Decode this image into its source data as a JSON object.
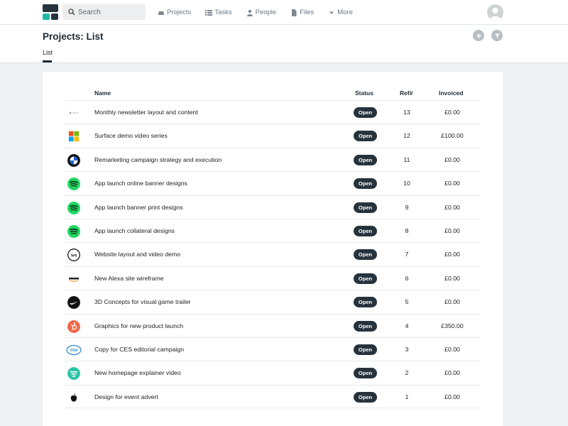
{
  "search": {
    "placeholder": "Search"
  },
  "nav": [
    {
      "label": "Projects",
      "icon": "car-icon"
    },
    {
      "label": "Tasks",
      "icon": "list-icon"
    },
    {
      "label": "People",
      "icon": "person-icon"
    },
    {
      "label": "Files",
      "icon": "file-icon"
    },
    {
      "label": "More",
      "icon": "caret-down-icon"
    }
  ],
  "page": {
    "title": "Projects: List",
    "tab": "List"
  },
  "table": {
    "headers": {
      "name": "Name",
      "status": "Status",
      "ref": "Ref#",
      "invoiced": "Invoiced"
    },
    "rows": [
      {
        "logo": "generic-logo",
        "name": "Monthly newsletter layout and content",
        "status": "Open",
        "ref": "13",
        "invoiced": "£0.00"
      },
      {
        "logo": "microsoft-logo",
        "name": "Surface demo video series",
        "status": "Open",
        "ref": "12",
        "invoiced": "£100.00"
      },
      {
        "logo": "bmw-logo",
        "name": "Remarketing campaign strategy and execution",
        "status": "Open",
        "ref": "11",
        "invoiced": "£0.00"
      },
      {
        "logo": "spotify-logo",
        "name": "App launch online banner designs",
        "status": "Open",
        "ref": "10",
        "invoiced": "£0.00"
      },
      {
        "logo": "spotify-logo",
        "name": "App launch banner print designs",
        "status": "Open",
        "ref": "9",
        "invoiced": "£0.00"
      },
      {
        "logo": "spotify-logo",
        "name": "App launch collateral designs",
        "status": "Open",
        "ref": "8",
        "invoiced": "£0.00"
      },
      {
        "logo": "wework-logo",
        "name": "Website layout and video demo",
        "status": "Open",
        "ref": "7",
        "invoiced": "£0.00"
      },
      {
        "logo": "amazon-logo",
        "name": "New Alexa site wireframe",
        "status": "Open",
        "ref": "6",
        "invoiced": "£0.00"
      },
      {
        "logo": "nike-logo",
        "name": "3D Concepts for visual game trailer",
        "status": "Open",
        "ref": "5",
        "invoiced": "£0.00"
      },
      {
        "logo": "hubspot-logo",
        "name": "Graphics for new product launch",
        "status": "Open",
        "ref": "4",
        "invoiced": "£350.00"
      },
      {
        "logo": "intel-logo",
        "name": "Copy for CES editorial campaign",
        "status": "Open",
        "ref": "3",
        "invoiced": "£0.00"
      },
      {
        "logo": "teal-logo",
        "name": "New homepage explainer video",
        "status": "Open",
        "ref": "2",
        "invoiced": "£0.00"
      },
      {
        "logo": "apple-logo",
        "name": "Design for event advert",
        "status": "Open",
        "ref": "1",
        "invoiced": "£0.00"
      }
    ]
  },
  "colors": {
    "dark": "#26333d",
    "accent": "#1fb8a8",
    "spotify": "#1ed760",
    "hubspot": "#f0674a"
  }
}
